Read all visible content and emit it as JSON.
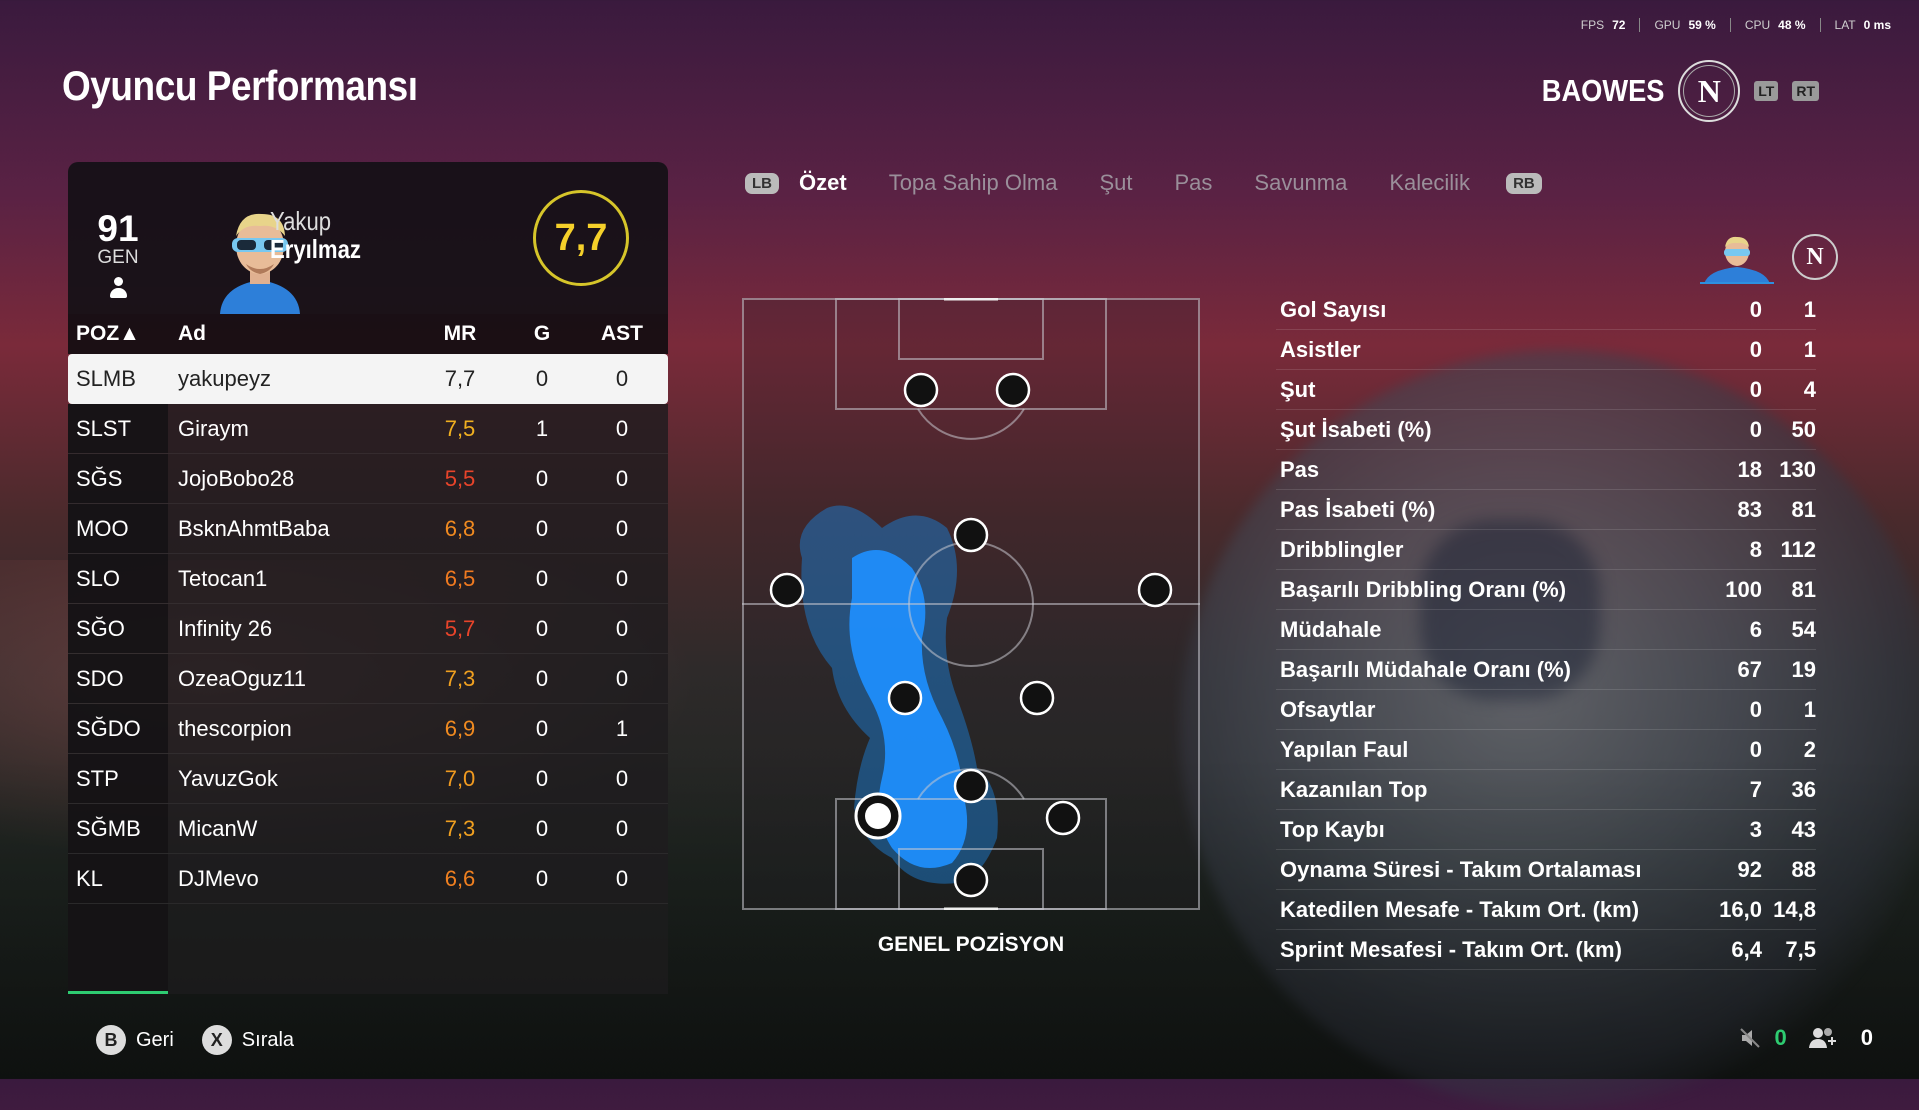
{
  "hud": {
    "fps_label": "FPS",
    "fps_value": "72",
    "gpu_label": "GPU",
    "gpu_value": "59 %",
    "cpu_label": "CPU",
    "cpu_value": "48 %",
    "lat_label": "LAT",
    "lat_value": "0 ms"
  },
  "page_title": "Oyuncu Performansı",
  "team": {
    "name": "BAOWES",
    "crest_letter": "N",
    "lt_label": "LT",
    "rt_label": "RT"
  },
  "player": {
    "overall": "91",
    "overall_label": "GEN",
    "first_name": "Yakup",
    "last_name": "Eryılmaz",
    "rating": "7,7"
  },
  "table": {
    "headers": {
      "pos": "POZ▲",
      "name": "Ad",
      "mr": "MR",
      "g": "G",
      "ast": "AST"
    },
    "rows": [
      {
        "pos": "SLMB",
        "name": "yakupeyz",
        "mr": "7,7",
        "g": "0",
        "ast": "0",
        "mr_color": "#222222"
      },
      {
        "pos": "SLST",
        "name": "Giraym",
        "mr": "7,5",
        "g": "1",
        "ast": "0",
        "mr_color": "#f0b020"
      },
      {
        "pos": "SĞS",
        "name": "JojoBobo28",
        "mr": "5,5",
        "g": "0",
        "ast": "0",
        "mr_color": "#e8442a"
      },
      {
        "pos": "MOO",
        "name": "BsknAhmtBaba",
        "mr": "6,8",
        "g": "0",
        "ast": "0",
        "mr_color": "#f08a20"
      },
      {
        "pos": "SLO",
        "name": "Tetocan1",
        "mr": "6,5",
        "g": "0",
        "ast": "0",
        "mr_color": "#f07a20"
      },
      {
        "pos": "SĞO",
        "name": "Infinity 26",
        "mr": "5,7",
        "g": "0",
        "ast": "0",
        "mr_color": "#e8442a"
      },
      {
        "pos": "SDO",
        "name": "OzeaOguz11",
        "mr": "7,3",
        "g": "0",
        "ast": "0",
        "mr_color": "#f0a020"
      },
      {
        "pos": "SĞDO",
        "name": "thescorpion",
        "mr": "6,9",
        "g": "0",
        "ast": "1",
        "mr_color": "#f08a20"
      },
      {
        "pos": "STP",
        "name": "YavuzGok",
        "mr": "7,0",
        "g": "0",
        "ast": "0",
        "mr_color": "#f09a20"
      },
      {
        "pos": "SĞMB",
        "name": "MicanW",
        "mr": "7,3",
        "g": "0",
        "ast": "0",
        "mr_color": "#f0a020"
      },
      {
        "pos": "KL",
        "name": "DJMevo",
        "mr": "6,6",
        "g": "0",
        "ast": "0",
        "mr_color": "#f08020"
      }
    ]
  },
  "tabs": {
    "lb": "LB",
    "rb": "RB",
    "items": [
      "Özet",
      "Topa Sahip Olma",
      "Şut",
      "Pas",
      "Savunma",
      "Kalecilik"
    ]
  },
  "pitch_label": "GENEL POZİSYON",
  "stats": [
    {
      "label": "Gol Sayısı",
      "player": "0",
      "team": "1"
    },
    {
      "label": "Asistler",
      "player": "0",
      "team": "1"
    },
    {
      "label": "Şut",
      "player": "0",
      "team": "4"
    },
    {
      "label": "Şut İsabeti (%)",
      "player": "0",
      "team": "50"
    },
    {
      "label": "Pas",
      "player": "18",
      "team": "130"
    },
    {
      "label": "Pas İsabeti (%)",
      "player": "83",
      "team": "81"
    },
    {
      "label": "Dribblingler",
      "player": "8",
      "team": "112"
    },
    {
      "label": "Başarılı Dribbling Oranı (%)",
      "player": "100",
      "team": "81"
    },
    {
      "label": "Müdahale",
      "player": "6",
      "team": "54"
    },
    {
      "label": "Başarılı Müdahale Oranı (%)",
      "player": "67",
      "team": "19"
    },
    {
      "label": "Ofsaytlar",
      "player": "0",
      "team": "1"
    },
    {
      "label": "Yapılan Faul",
      "player": "0",
      "team": "2"
    },
    {
      "label": "Kazanılan Top",
      "player": "7",
      "team": "36"
    },
    {
      "label": "Top Kaybı",
      "player": "3",
      "team": "43"
    },
    {
      "label": "Oynama Süresi - Takım Ortalaması",
      "player": "92",
      "team": "88"
    },
    {
      "label": "Katedilen Mesafe - Takım Ort. (km)",
      "player": "16,0",
      "team": "14,8"
    },
    {
      "label": "Sprint Mesafesi - Takım Ort. (km)",
      "player": "6,4",
      "team": "7,5"
    }
  ],
  "bottom": {
    "back_glyph": "B",
    "back_label": "Geri",
    "sort_glyph": "X",
    "sort_label": "Sırala",
    "mute_count": "0",
    "party_count": "0"
  },
  "colors": {
    "accent_yellow": "#f5d02a",
    "heat_blue": "#1e90ff",
    "green": "#2ecc71"
  }
}
